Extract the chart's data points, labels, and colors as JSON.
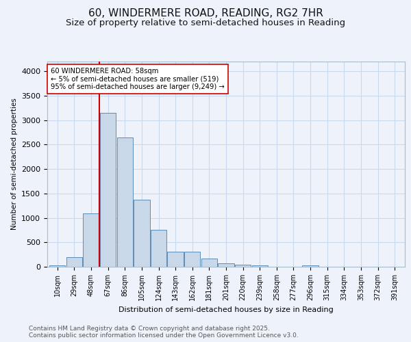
{
  "title1": "60, WINDERMERE ROAD, READING, RG2 7HR",
  "title2": "Size of property relative to semi-detached houses in Reading",
  "xlabel": "Distribution of semi-detached houses by size in Reading",
  "ylabel": "Number of semi-detached properties",
  "bar_labels": [
    "10sqm",
    "29sqm",
    "48sqm",
    "67sqm",
    "86sqm",
    "105sqm",
    "124sqm",
    "143sqm",
    "162sqm",
    "181sqm",
    "201sqm",
    "220sqm",
    "239sqm",
    "258sqm",
    "277sqm",
    "296sqm",
    "315sqm",
    "334sqm",
    "353sqm",
    "372sqm",
    "391sqm"
  ],
  "bar_values": [
    30,
    190,
    1090,
    3150,
    2650,
    1370,
    750,
    315,
    310,
    165,
    75,
    45,
    30,
    0,
    0,
    30,
    0,
    0,
    0,
    0,
    0
  ],
  "bar_color": "#c8d8e8",
  "bar_edge_color": "#5b8db8",
  "grid_color": "#c8d8ee",
  "background_color": "#eef2fa",
  "vline_color": "#cc0000",
  "annotation_text": "60 WINDERMERE ROAD: 58sqm\n← 5% of semi-detached houses are smaller (519)\n95% of semi-detached houses are larger (9,249) →",
  "annotation_box_color": "#ffffff",
  "annotation_box_edge": "#cc0000",
  "ylim": [
    0,
    4200
  ],
  "footer": "Contains HM Land Registry data © Crown copyright and database right 2025.\nContains public sector information licensed under the Open Government Licence v3.0.",
  "title_fontsize": 11,
  "subtitle_fontsize": 9.5,
  "footer_fontsize": 6.5
}
